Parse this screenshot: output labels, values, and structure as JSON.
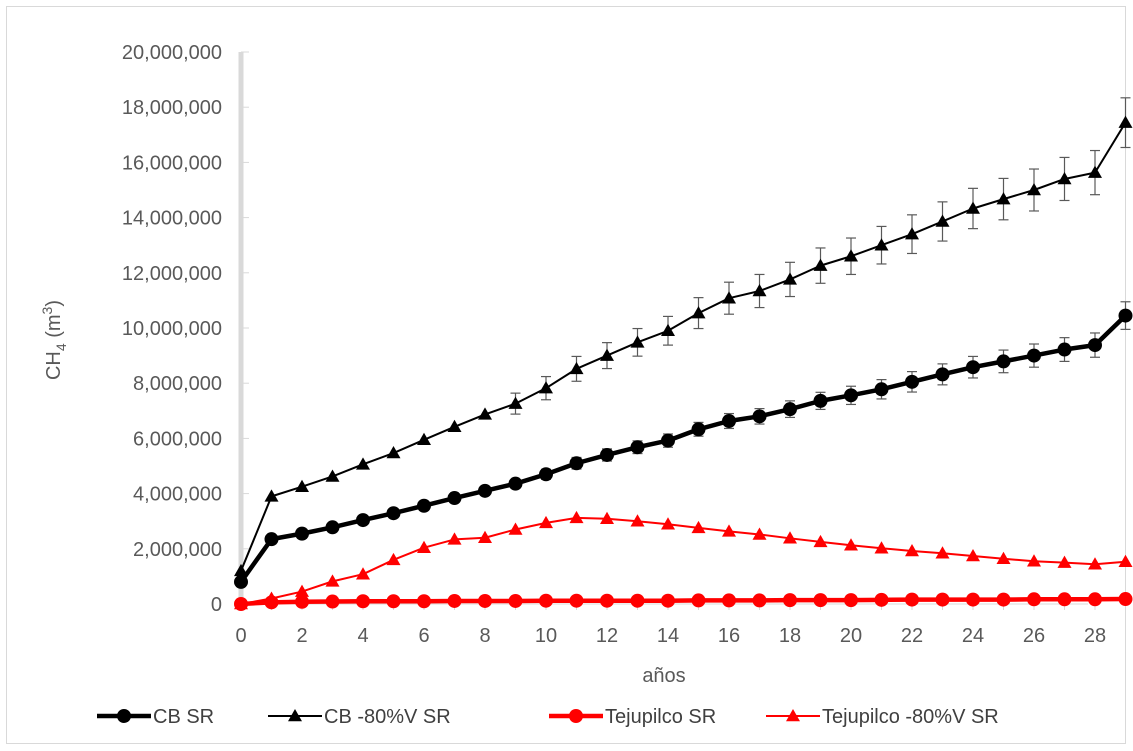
{
  "chart_data": {
    "type": "line",
    "title": "",
    "xlabel": "años",
    "ylabel": {
      "base": "CH",
      "sub": "4",
      "unit_open": " (m",
      "sup": "3",
      "unit_close": ")"
    },
    "xlim": [
      0,
      29
    ],
    "ylim": [
      0,
      20000000
    ],
    "x_ticks": [
      0,
      2,
      4,
      6,
      8,
      10,
      12,
      14,
      16,
      18,
      20,
      22,
      24,
      26,
      28
    ],
    "x_tick_labels": [
      "0",
      "2",
      "4",
      "6",
      "8",
      "10",
      "12",
      "14",
      "16",
      "18",
      "20",
      "22",
      "24",
      "26",
      "28"
    ],
    "y_ticks": [
      0,
      2000000,
      4000000,
      6000000,
      8000000,
      10000000,
      12000000,
      14000000,
      16000000,
      18000000,
      20000000
    ],
    "y_tick_labels": [
      "0",
      "2,000,000",
      "4,000,000",
      "6,000,000",
      "8,000,000",
      "10,000,000",
      "12,000,000",
      "14,000,000",
      "16,000,000",
      "18,000,000",
      "20,000,000"
    ],
    "grid": false,
    "legend_position": "bottom",
    "x": [
      0,
      1,
      2,
      3,
      4,
      5,
      6,
      7,
      8,
      9,
      10,
      11,
      12,
      13,
      14,
      15,
      16,
      17,
      18,
      19,
      20,
      21,
      22,
      23,
      24,
      25,
      26,
      27,
      28,
      29
    ],
    "series": [
      {
        "name": "CB SR",
        "color": "#000000",
        "marker": "circle",
        "thick": true,
        "values": [
          800000,
          2350000,
          2550000,
          2780000,
          3040000,
          3290000,
          3560000,
          3840000,
          4100000,
          4360000,
          4700000,
          5100000,
          5400000,
          5680000,
          5920000,
          6330000,
          6630000,
          6800000,
          7060000,
          7360000,
          7560000,
          7780000,
          8050000,
          8320000,
          8580000,
          8790000,
          9000000,
          9220000,
          9380000,
          10450000
        ],
        "errors": [
          0,
          0,
          0,
          0,
          0,
          0,
          0,
          0,
          0,
          150000,
          180000,
          210000,
          220000,
          230000,
          240000,
          250000,
          270000,
          280000,
          300000,
          310000,
          330000,
          350000,
          370000,
          380000,
          390000,
          410000,
          420000,
          430000,
          440000,
          500000
        ]
      },
      {
        "name": "CB -80%V SR",
        "color": "#000000",
        "marker": "triangle",
        "thick": false,
        "values": [
          1200000,
          3900000,
          4250000,
          4620000,
          5060000,
          5470000,
          5950000,
          6420000,
          6870000,
          7260000,
          7820000,
          8520000,
          9000000,
          9480000,
          9900000,
          10540000,
          11080000,
          11340000,
          11760000,
          12260000,
          12600000,
          13000000,
          13400000,
          13860000,
          14330000,
          14670000,
          15000000,
          15400000,
          15630000,
          17440000
        ],
        "errors": [
          0,
          0,
          0,
          0,
          0,
          0,
          0,
          0,
          0,
          380000,
          420000,
          450000,
          470000,
          500000,
          520000,
          560000,
          580000,
          600000,
          620000,
          640000,
          660000,
          680000,
          700000,
          710000,
          730000,
          750000,
          760000,
          780000,
          800000,
          900000
        ]
      },
      {
        "name": "Tejupilco SR",
        "color": "#ff0000",
        "marker": "circle",
        "thick": true,
        "values": [
          0,
          60000,
          80000,
          90000,
          100000,
          100000,
          100000,
          110000,
          110000,
          110000,
          120000,
          120000,
          120000,
          120000,
          120000,
          130000,
          130000,
          130000,
          140000,
          140000,
          140000,
          150000,
          160000,
          160000,
          160000,
          160000,
          170000,
          170000,
          170000,
          180000
        ],
        "errors": []
      },
      {
        "name": "Tejupilco -80%V SR",
        "color": "#ff0000",
        "marker": "triangle",
        "thick": false,
        "values": [
          0,
          200000,
          450000,
          820000,
          1080000,
          1600000,
          2040000,
          2340000,
          2400000,
          2700000,
          2940000,
          3120000,
          3090000,
          3000000,
          2890000,
          2760000,
          2630000,
          2520000,
          2380000,
          2250000,
          2130000,
          2020000,
          1920000,
          1840000,
          1740000,
          1640000,
          1550000,
          1500000,
          1440000,
          1530000
        ],
        "errors": []
      }
    ]
  }
}
